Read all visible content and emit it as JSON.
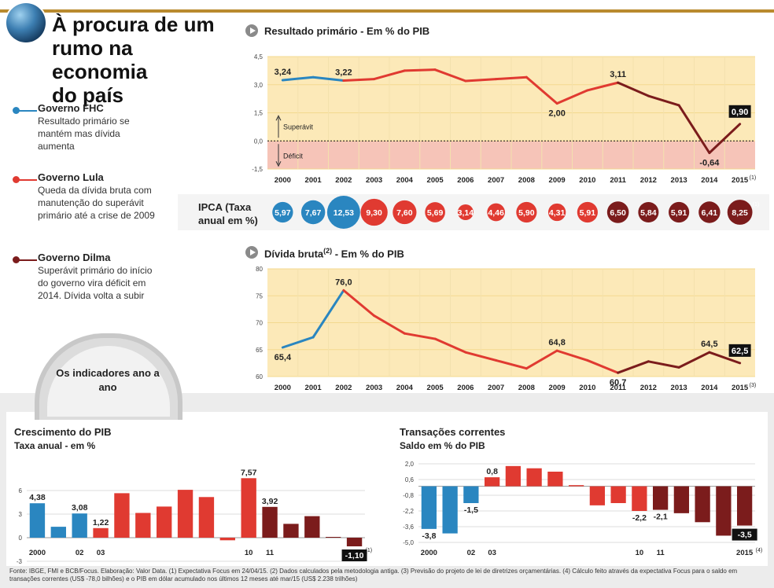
{
  "header": {
    "title_line1": "À procura de um",
    "title_line2": "rumo na economia",
    "title_line3": "do país"
  },
  "legend": [
    {
      "name": "Governo FHC",
      "desc": "Resultado primário se mantém mas dívida aumenta",
      "color": "#2a86c0"
    },
    {
      "name": "Governo Lula",
      "desc": "Queda da dívida bruta com manutenção do superávit primário até a crise de 2009",
      "color": "#e03a31"
    },
    {
      "name": "Governo Dilma",
      "desc": "Superávit primário do início do governo vira déficit em 2014. Dívida volta a subir",
      "color": "#7b1c1c"
    }
  ],
  "indicators_badge": "Os indicadores ano a ano",
  "colors": {
    "fhc": "#2a86c0",
    "lula": "#e03a31",
    "dilma": "#7b1c1c",
    "panel_bg": "#fce9b8",
    "deficit_bg": "#f6c4b8",
    "gray": "#ececec"
  },
  "ipca": {
    "label": "IPCA (Taxa anual em %)",
    "values": [
      "5,97",
      "7,67",
      "12,53",
      "9,30",
      "7,60",
      "5,69",
      "3,14",
      "4,46",
      "5,90",
      "4,31",
      "5,91",
      "6,50",
      "5,84",
      "5,91",
      "6,41",
      "8,25"
    ],
    "note": "(1)"
  },
  "chart_data": [
    {
      "id": "primario",
      "type": "line",
      "title": "Resultado primário - Em % do PIB",
      "x": [
        2000,
        2001,
        2002,
        2003,
        2004,
        2005,
        2006,
        2007,
        2008,
        2009,
        2010,
        2011,
        2012,
        2013,
        2014,
        2015
      ],
      "x_labels": [
        "2000",
        "2001",
        "2002",
        "2003",
        "2004",
        "2005",
        "2006",
        "2007",
        "2008",
        "2009",
        "2010",
        "2011",
        "2012",
        "2013",
        "2014",
        "2015"
      ],
      "last_label_note": "(1)",
      "y": [
        3.24,
        3.4,
        3.22,
        3.3,
        3.75,
        3.8,
        3.2,
        3.3,
        3.4,
        2.0,
        2.7,
        3.11,
        2.4,
        1.9,
        -0.64,
        0.9
      ],
      "labels": {
        "0": "3,24",
        "2": "3,22",
        "9": "2,00",
        "11": "3,11",
        "14": "-0,64",
        "15": "0,90"
      },
      "highlight_index": 15,
      "yticks": [
        4.5,
        3.0,
        1.5,
        0.0,
        -1.5
      ],
      "ytick_labels": [
        "4,5",
        "3,0",
        "1,5",
        "0,0",
        "-1,5"
      ],
      "ylim": [
        -1.5,
        4.5
      ],
      "annotation_up": "Superávit",
      "annotation_down": "Déficit"
    },
    {
      "id": "divida",
      "type": "line",
      "title": "Dívida bruta",
      "title_sup": "(2)",
      "title_suffix": " - Em % do PIB",
      "x": [
        2000,
        2001,
        2002,
        2003,
        2004,
        2005,
        2006,
        2007,
        2008,
        2009,
        2010,
        2011,
        2012,
        2013,
        2014,
        2015
      ],
      "x_labels": [
        "2000",
        "2001",
        "2002",
        "2003",
        "2004",
        "2005",
        "2006",
        "2007",
        "2008",
        "2009",
        "2010",
        "2011",
        "2012",
        "2013",
        "2014",
        "2015"
      ],
      "last_label_note": "(3)",
      "y": [
        65.4,
        67.3,
        76.0,
        71.3,
        68.0,
        67.0,
        64.5,
        63.0,
        61.5,
        64.8,
        63.0,
        60.7,
        62.8,
        61.7,
        64.5,
        62.5
      ],
      "labels": {
        "0": "65,4",
        "2": "76,0",
        "9": "64,8",
        "11": "60,7",
        "14": "64,5",
        "15": "62,5"
      },
      "highlight_index": 15,
      "yticks": [
        80,
        75,
        70,
        65,
        60
      ],
      "ytick_labels": [
        "80",
        "75",
        "70",
        "65",
        "60"
      ],
      "ylim": [
        60,
        80
      ]
    },
    {
      "id": "pib",
      "type": "bar",
      "title": "Crescimento do PIB",
      "subtitle": "Taxa anual - em %",
      "values": [
        4.38,
        1.39,
        3.08,
        1.22,
        5.66,
        3.15,
        3.96,
        6.09,
        5.17,
        -0.33,
        7.57,
        3.92,
        1.76,
        2.74,
        0.1,
        -1.1
      ],
      "x_labels": {
        "0": "2000",
        "2": "02",
        "3": "03",
        "10": "10",
        "11": "11",
        "15": "2015"
      },
      "last_label_note": "(1)",
      "labels": {
        "0": "4,38",
        "2": "3,08",
        "3": "1,22",
        "10": "7,57",
        "11": "3,92",
        "15": "-1,10"
      },
      "highlight_index": 15,
      "yticks": [
        6,
        3,
        0,
        -3
      ],
      "ytick_labels": [
        "6",
        "3",
        "0",
        "-3"
      ],
      "ylim": [
        -3,
        8
      ]
    },
    {
      "id": "transacoes",
      "type": "bar",
      "title": "Transações correntes",
      "subtitle": "Saldo em % do PIB",
      "values": [
        -3.8,
        -4.2,
        -1.5,
        0.8,
        1.8,
        1.6,
        1.3,
        0.1,
        -1.7,
        -1.5,
        -2.2,
        -2.1,
        -2.4,
        -3.2,
        -4.4,
        -3.5
      ],
      "x_labels": {
        "0": "2000",
        "2": "02",
        "3": "03",
        "10": "10",
        "11": "11",
        "15": "2015"
      },
      "last_label_note": "(4)",
      "labels": {
        "0": "-3,8",
        "2": "-1,5",
        "3": "0,8",
        "10": "-2,2",
        "11": "-2,1",
        "15": "-3,5"
      },
      "highlight_index": 15,
      "yticks": [
        2.0,
        0.6,
        -0.8,
        -2.2,
        -3.6,
        -5.0
      ],
      "ytick_labels": [
        "2,0",
        "0,6",
        "-0,8",
        "-2,2",
        "-3,6",
        "-5,0"
      ],
      "ylim": [
        -5.0,
        2.0
      ]
    }
  ],
  "footer": "Fonte: IBGE, FMI e BCB/Focus. Elaboração: Valor Data. (1) Expectativa Focus em 24/04/15. (2) Dados calculados pela metodologia antiga. (3) Previsão do projeto de lei de diretrizes orçamentárias. (4) Cálculo feito através da expectativa Focus para o saldo em transações correntes (US$ -78,0 bilhões) e o PIB em dólar acumulado nos últimos 12 meses até mar/15 (US$ 2.238 trilhões)"
}
